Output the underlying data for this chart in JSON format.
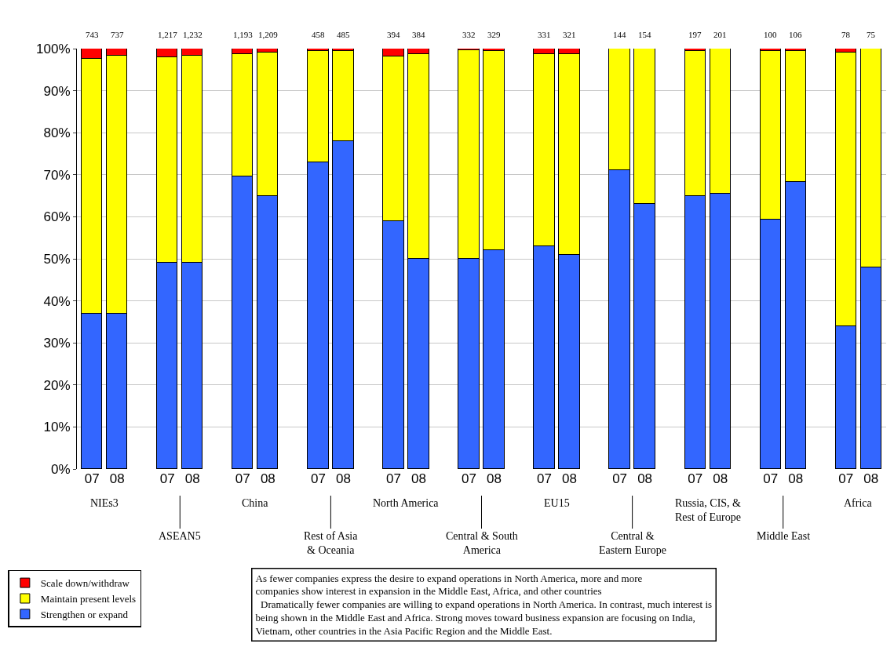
{
  "chart_data": {
    "type": "bar",
    "stacked": true,
    "categories": [
      "07",
      "08",
      "07",
      "08",
      "07",
      "08",
      "07",
      "08",
      "07",
      "08",
      "07",
      "08",
      "07",
      "08",
      "07",
      "08",
      "07",
      "08",
      "07",
      "08",
      "07",
      "08"
    ],
    "series": [
      {
        "name": "Strengthen or expand",
        "color": "#3366ff",
        "values": [
          37,
          37,
          49,
          49,
          69.5,
          65,
          73,
          78,
          59,
          50,
          50,
          52,
          53,
          51,
          71,
          63,
          65,
          65.5,
          59.3,
          68.3,
          34,
          48
        ]
      },
      {
        "name": "Maintain present levels",
        "color": "#ffff00",
        "values": [
          60.5,
          61.4,
          49,
          49.3,
          29.2,
          34.1,
          26.5,
          21.5,
          39.1,
          48.7,
          49.7,
          47.4,
          45.7,
          47.7,
          29,
          37,
          34.5,
          34.5,
          40.1,
          31.1,
          65,
          52
        ]
      },
      {
        "name": "Scale down/withdraw",
        "color": "#ff0000",
        "values": [
          2.5,
          1.6,
          2,
          1.7,
          1.3,
          0.9,
          0.5,
          0.5,
          1.9,
          1.3,
          0.3,
          0.6,
          1.3,
          1.3,
          0,
          0,
          0.5,
          0,
          0.6,
          0.6,
          1,
          0
        ]
      }
    ],
    "ylim": [
      0,
      100
    ],
    "yticks": [
      {
        "value": 0,
        "label": "0%"
      },
      {
        "value": 10,
        "label": "10%"
      },
      {
        "value": 20,
        "label": "20%"
      },
      {
        "value": 30,
        "label": "30%"
      },
      {
        "value": 40,
        "label": "40%"
      },
      {
        "value": 50,
        "label": "50%"
      },
      {
        "value": 60,
        "label": "60%"
      },
      {
        "value": 70,
        "label": "70%"
      },
      {
        "value": 80,
        "label": "80%"
      },
      {
        "value": 90,
        "label": "90%"
      },
      {
        "value": 100,
        "label": "100%"
      }
    ],
    "grid": "y",
    "legend": "bottom left",
    "annotations": [
      "743",
      "737",
      "1,217",
      "1,232",
      "1,193",
      "1,209",
      "458",
      "485",
      "394",
      "384",
      "332",
      "329",
      "331",
      "321",
      "144",
      "154",
      "197",
      "201",
      "100",
      "106",
      "78",
      "75",
      "NIEs3",
      "ASEAN5",
      "China",
      "Rest of Asia\n& Oceania",
      "North America",
      "Central & South\nAmerica",
      "EU15",
      "Central &\nEastern Europe",
      "Russia, CIS, &\nRest of Europe",
      "Middle East",
      "Africa",
      "As fewer companies express the desire to expand operations in North America, more and more\ncompanies show interest in expansion in the Middle East, Africa, and other countries\n  Dramatically fewer companies are willing to expand operations in North America. In contrast, much interest is\nbeing shown in the Middle East and Africa. Strong moves toward business expansion are focusing on India,\nVietnam, other countries in the Asia Pacific Region and the Middle East."
    ]
  }
}
